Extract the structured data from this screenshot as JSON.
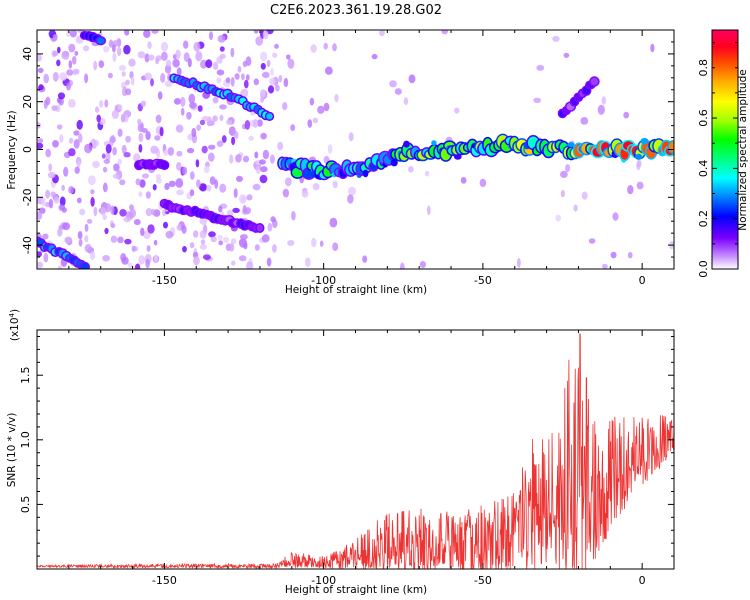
{
  "title": "C2E6.2023.361.19.28.G02",
  "chart_data": [
    {
      "type": "heatmap",
      "xlabel": "Height of straight line (km)",
      "ylabel": "Frequency (Hz)",
      "xlim": [
        -190,
        10
      ],
      "ylim": [
        -50,
        50
      ],
      "xticks": [
        -150,
        -100,
        -50,
        0
      ],
      "yticks": [
        -40,
        -20,
        0,
        20,
        40
      ],
      "colorbar": {
        "label": "Normalized spectral amplitude",
        "range": [
          0,
          0.95
        ],
        "ticks": [
          0.0,
          0.2,
          0.4,
          0.6,
          0.8
        ]
      },
      "features": [
        {
          "points": [
            [
              -190,
              -39
            ],
            [
              -180,
              -45
            ],
            [
              -175,
              -49
            ]
          ],
          "amplitude": 0.3
        },
        {
          "points": [
            [
              -175,
              48
            ],
            [
              -170,
              46
            ]
          ],
          "amplitude": 0.22
        },
        {
          "points": [
            [
              -147,
              30
            ],
            [
              -130,
              23
            ],
            [
              -117,
              14
            ]
          ],
          "amplitude": 0.32
        },
        {
          "points": [
            [
              -150,
              -23
            ],
            [
              -135,
              -28
            ],
            [
              -120,
              -33
            ]
          ],
          "amplitude": 0.12
        },
        {
          "points": [
            [
              -158,
              -6
            ],
            [
              -150,
              -6
            ]
          ],
          "amplitude": 0.14
        },
        {
          "points": [
            [
              -113,
              -7
            ],
            [
              -100,
              -9
            ],
            [
              -85,
              -6
            ],
            [
              -75,
              -2
            ],
            [
              -60,
              0
            ],
            [
              -45,
              2
            ],
            [
              -30,
              1
            ],
            [
              -20,
              -1
            ],
            [
              -10,
              0
            ],
            [
              10,
              0
            ]
          ],
          "amplitude": 0.6
        },
        {
          "points": [
            [
              -25,
              15
            ],
            [
              -20,
              22
            ],
            [
              -15,
              28
            ]
          ],
          "amplitude": 0.12
        }
      ]
    },
    {
      "type": "line",
      "xlabel": "Height of straight line (km)",
      "ylabel": "SNR (10 * v/v)",
      "multiplier_label": "(x10",
      "multiplier_exp": "4",
      "xlim": [
        -190,
        10
      ],
      "ylim": [
        0,
        1.85
      ],
      "xticks": [
        -150,
        -100,
        -50,
        0
      ],
      "yticks": [
        0.5,
        1.0,
        1.5
      ],
      "ytick_labels": [
        "0.5",
        "1.0",
        "1.5"
      ],
      "color": "#ee3333",
      "envelope": [
        {
          "x": -190,
          "base": 0.02,
          "amp": 0.01
        },
        {
          "x": -150,
          "base": 0.02,
          "amp": 0.02
        },
        {
          "x": -115,
          "base": 0.02,
          "amp": 0.02
        },
        {
          "x": -110,
          "base": 0.06,
          "amp": 0.08
        },
        {
          "x": -100,
          "base": 0.04,
          "amp": 0.06
        },
        {
          "x": -90,
          "base": 0.08,
          "amp": 0.15
        },
        {
          "x": -80,
          "base": 0.15,
          "amp": 0.3
        },
        {
          "x": -70,
          "base": 0.15,
          "amp": 0.35
        },
        {
          "x": -60,
          "base": 0.15,
          "amp": 0.3
        },
        {
          "x": -50,
          "base": 0.15,
          "amp": 0.35
        },
        {
          "x": -40,
          "base": 0.2,
          "amp": 0.4
        },
        {
          "x": -35,
          "base": 0.3,
          "amp": 0.7
        },
        {
          "x": -30,
          "base": 0.4,
          "amp": 0.7
        },
        {
          "x": -25,
          "base": 0.5,
          "amp": 0.9
        },
        {
          "x": -20,
          "base": 0.5,
          "amp": 1.1
        },
        {
          "x": -17,
          "base": 0.5,
          "amp": 0.9
        },
        {
          "x": -12,
          "base": 0.45,
          "amp": 0.5
        },
        {
          "x": -10,
          "base": 0.65,
          "amp": 0.55
        },
        {
          "x": 0,
          "base": 0.85,
          "amp": 0.35
        },
        {
          "x": 10,
          "base": 1.0,
          "amp": 0.2
        }
      ],
      "peaks": [
        [
          -19.5,
          1.82
        ],
        [
          -21,
          1.55
        ],
        [
          -23,
          1.62
        ],
        [
          -17.5,
          1.48
        ]
      ]
    }
  ]
}
